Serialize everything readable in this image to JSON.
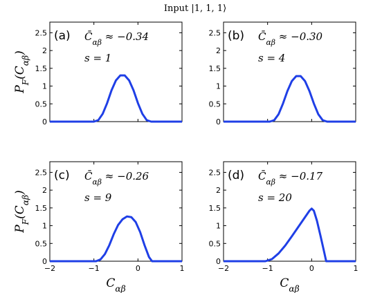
{
  "figure_title": "Input |1, 1, 1⟩",
  "ylabel": "P_F(C_αβ)",
  "xlabel": "C_αβ",
  "colors": {
    "curve": "#1f3fe6",
    "axis": "#000000",
    "background": "#ffffff"
  },
  "chart_data": [
    {
      "type": "line",
      "panel": "(a)",
      "annotation_mean": "C̄_αβ ≈ −0.34",
      "annotation_s": "s = 1",
      "xlim": [
        -2,
        1
      ],
      "ylim": [
        0,
        2.8
      ],
      "xticks": [
        "−2",
        "−1",
        "0",
        "1"
      ],
      "yticks": [
        "0",
        "0.5",
        "1",
        "1.5",
        "2",
        "2.5"
      ],
      "x": [
        -2.0,
        -1.0,
        -0.9,
        -0.8,
        -0.7,
        -0.6,
        -0.5,
        -0.4,
        -0.3,
        -0.2,
        -0.1,
        0.0,
        0.1,
        0.2,
        0.3,
        1.0
      ],
      "y": [
        0,
        0,
        0.04,
        0.22,
        0.52,
        0.88,
        1.16,
        1.3,
        1.3,
        1.16,
        0.88,
        0.52,
        0.22,
        0.04,
        0,
        0
      ]
    },
    {
      "type": "line",
      "panel": "(b)",
      "annotation_mean": "C̄_αβ ≈ −0.30",
      "annotation_s": "s = 4",
      "xlim": [
        -2,
        1
      ],
      "ylim": [
        0,
        2.8
      ],
      "xticks": [
        "−2",
        "−1",
        "0",
        "1"
      ],
      "yticks": [
        "0",
        "0.5",
        "1",
        "1.5",
        "2",
        "2.5"
      ],
      "x": [
        -2.0,
        -0.95,
        -0.85,
        -0.75,
        -0.65,
        -0.55,
        -0.45,
        -0.35,
        -0.25,
        -0.15,
        -0.05,
        0.05,
        0.15,
        0.25,
        0.35,
        1.0
      ],
      "y": [
        0,
        0,
        0.04,
        0.21,
        0.51,
        0.86,
        1.14,
        1.28,
        1.28,
        1.14,
        0.86,
        0.51,
        0.21,
        0.04,
        0,
        0
      ]
    },
    {
      "type": "line",
      "panel": "(c)",
      "annotation_mean": "C̄_αβ ≈ −0.26",
      "annotation_s": "s = 9",
      "xlim": [
        -2,
        1
      ],
      "ylim": [
        0,
        2.8
      ],
      "xticks": [
        "−2",
        "−1",
        "0",
        "1"
      ],
      "yticks": [
        "0",
        "0.5",
        "1",
        "1.5",
        "2",
        "2.5"
      ],
      "x": [
        -2.0,
        -0.95,
        -0.85,
        -0.75,
        -0.65,
        -0.55,
        -0.45,
        -0.35,
        -0.25,
        -0.15,
        -0.05,
        0.05,
        0.15,
        0.25,
        0.32,
        1.0
      ],
      "y": [
        0,
        0,
        0.05,
        0.2,
        0.45,
        0.76,
        1.02,
        1.18,
        1.26,
        1.24,
        1.1,
        0.82,
        0.45,
        0.12,
        0,
        0
      ]
    },
    {
      "type": "line",
      "panel": "(d)",
      "annotation_mean": "C̄_αβ ≈ −0.17",
      "annotation_s": "s = 20",
      "xlim": [
        -2,
        1
      ],
      "ylim": [
        0,
        2.8
      ],
      "xticks": [
        "−2",
        "−1",
        "0",
        "1"
      ],
      "yticks": [
        "0",
        "0.5",
        "1",
        "1.5",
        "2",
        "2.5"
      ],
      "x": [
        -2.0,
        -1.05,
        -0.9,
        -0.75,
        -0.6,
        -0.45,
        -0.3,
        -0.15,
        -0.05,
        0.0,
        0.05,
        0.12,
        0.2,
        0.28,
        0.33,
        1.0
      ],
      "y": [
        0,
        0,
        0.06,
        0.22,
        0.44,
        0.7,
        0.97,
        1.24,
        1.42,
        1.48,
        1.42,
        1.14,
        0.72,
        0.28,
        0,
        0
      ]
    }
  ]
}
